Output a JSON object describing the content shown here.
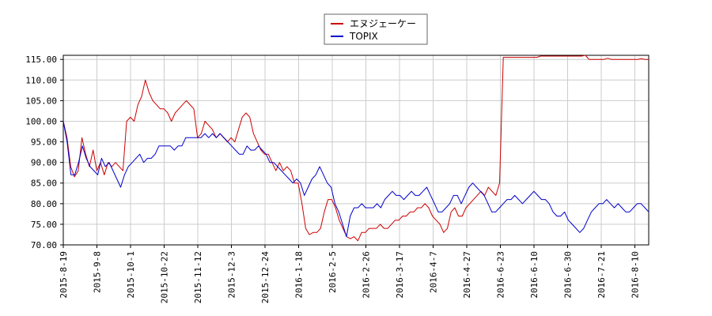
{
  "chart_data": {
    "type": "line",
    "x_ticks": [
      "2015-8-19",
      "2015-9-8",
      "2015-10-1",
      "2015-10-22",
      "2015-11-12",
      "2015-12-3",
      "2015-12-24",
      "2016-1-18",
      "2016-2-5",
      "2016-2-26",
      "2016-3-17",
      "2016-4-7",
      "2016-4-27",
      "2016-6-23",
      "2016-6-10",
      "2016-6-30",
      "2016-7-21",
      "2016-8-10"
    ],
    "y_ticks": [
      "115.00",
      "110.00",
      "105.00",
      "100.00",
      "95.00",
      "90.00",
      "85.00",
      "80.00",
      "75.00",
      "70.00"
    ],
    "ylim": [
      70,
      116
    ],
    "grid": true,
    "legend_position": "top-center",
    "series": [
      {
        "name": "エヌジェーケー",
        "color": "#cc0000",
        "values": [
          100,
          96,
          89,
          86.5,
          88,
          96,
          92,
          89,
          93,
          88,
          90,
          87,
          90,
          89,
          90,
          89,
          88,
          100,
          101,
          100,
          104,
          106,
          110,
          107,
          105,
          104,
          103,
          103,
          102,
          100,
          102,
          103,
          104,
          105,
          104,
          103,
          96,
          97,
          100,
          99,
          98,
          96,
          97,
          96,
          95,
          96,
          95,
          98,
          101,
          102,
          101,
          97,
          95,
          93,
          92,
          92,
          90,
          88,
          90,
          88,
          89,
          88,
          85,
          85,
          80,
          74,
          72.5,
          73,
          73,
          74,
          78,
          81,
          81,
          79,
          76,
          74,
          72,
          71.5,
          72,
          71,
          73,
          73,
          74,
          74,
          74,
          75,
          74,
          74,
          75,
          76,
          76,
          77,
          77,
          78,
          78,
          79,
          79,
          80,
          79,
          77,
          76,
          75,
          73,
          74,
          78,
          79,
          77,
          77,
          79,
          80,
          81,
          82,
          83,
          82,
          84,
          83,
          82,
          85,
          115.5,
          115.5,
          115.5,
          115.5,
          115.5,
          115.5,
          115.5,
          115.5,
          115.5,
          115.5,
          115.8,
          115.8,
          115.8,
          115.8,
          115.8,
          115.8,
          115.8,
          115.8,
          115.8,
          115.8,
          115.8,
          115.8,
          116,
          115,
          115,
          115,
          115,
          115,
          115.3,
          115,
          115,
          115,
          115,
          115,
          115,
          115,
          115,
          115.2,
          115,
          115
        ]
      },
      {
        "name": "TOPIX",
        "color": "#0000cc",
        "values": [
          100,
          95,
          87,
          87,
          90,
          94,
          91,
          89,
          88,
          87,
          91,
          89,
          90,
          88,
          86,
          84,
          87,
          89,
          90,
          91,
          92,
          90,
          91,
          91,
          92,
          94,
          94,
          94,
          94,
          93,
          94,
          94,
          96,
          96,
          96,
          96,
          96,
          97,
          96,
          97,
          96,
          97,
          96,
          95,
          94,
          93,
          92,
          92,
          94,
          93,
          93,
          94,
          93,
          92,
          90,
          90,
          89,
          88,
          87,
          86,
          85,
          86,
          85,
          82,
          84,
          86,
          87,
          89,
          87,
          85,
          84,
          80,
          78,
          75,
          72,
          77,
          79,
          79,
          80,
          79,
          79,
          79,
          80,
          79,
          81,
          82,
          83,
          82,
          82,
          81,
          82,
          83,
          82,
          82,
          83,
          84,
          82,
          80,
          78,
          78,
          79,
          80,
          82,
          82,
          80,
          82,
          84,
          85,
          84,
          83,
          82,
          80,
          78,
          78,
          79,
          80,
          81,
          81,
          82,
          81,
          80,
          81,
          82,
          83,
          82,
          81,
          81,
          80,
          78,
          77,
          77,
          78,
          76,
          75,
          74,
          73,
          74,
          76,
          78,
          79,
          80,
          80,
          81,
          80,
          79,
          80,
          79,
          78,
          78,
          79,
          80,
          80,
          79,
          78
        ]
      }
    ]
  }
}
